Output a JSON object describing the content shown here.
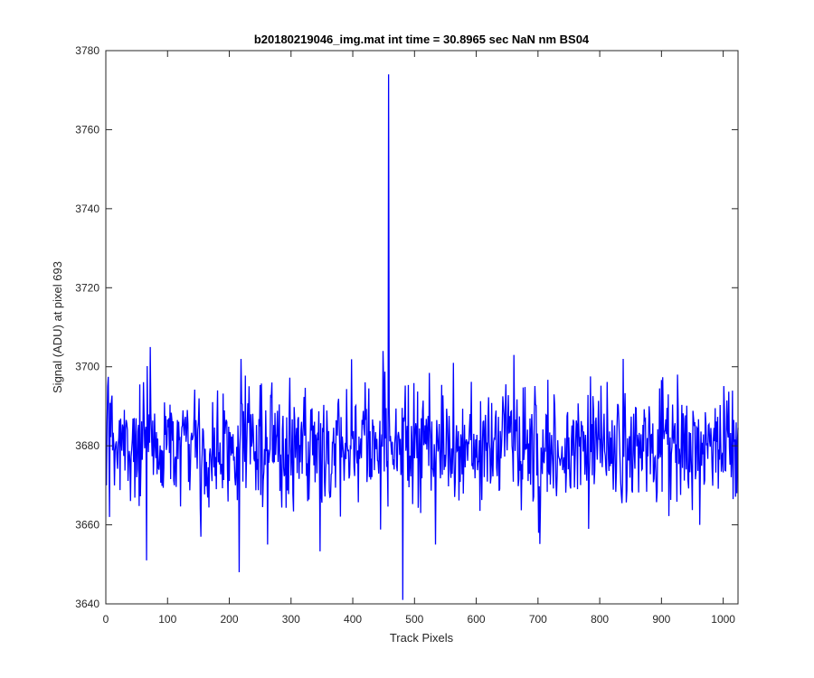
{
  "chart_data": {
    "type": "line",
    "title": "b20180219046_img.mat int time = 30.8965 sec  NaN nm BS04",
    "xlabel": "Track Pixels",
    "ylabel": "Signal (ADU) at pixel 693",
    "xlim": [
      0,
      1024
    ],
    "ylim": [
      3640,
      3780
    ],
    "xticks": [
      0,
      100,
      200,
      300,
      400,
      500,
      600,
      700,
      800,
      900,
      1000
    ],
    "yticks": [
      3640,
      3660,
      3680,
      3700,
      3720,
      3740,
      3760,
      3780
    ],
    "grid": false,
    "legend": "none",
    "line_color": "#0000ff",
    "series": [
      {
        "noise": {
          "count": 1024,
          "x_start": 1,
          "mean": 3680,
          "std": 7.5,
          "min": 3650,
          "max": 3705
        },
        "points": [
          {
            "x": 1,
            "y": 3670
          },
          {
            "x": 3,
            "y": 3695
          },
          {
            "x": 6,
            "y": 3662
          },
          {
            "x": 66,
            "y": 3651
          },
          {
            "x": 72,
            "y": 3705
          },
          {
            "x": 154,
            "y": 3657
          },
          {
            "x": 216,
            "y": 3648
          },
          {
            "x": 219,
            "y": 3702
          },
          {
            "x": 262,
            "y": 3655
          },
          {
            "x": 449,
            "y": 3704
          },
          {
            "x": 458,
            "y": 3774
          },
          {
            "x": 462,
            "y": 3680
          },
          {
            "x": 481,
            "y": 3641
          },
          {
            "x": 534,
            "y": 3655
          },
          {
            "x": 563,
            "y": 3701
          },
          {
            "x": 661,
            "y": 3703
          },
          {
            "x": 701,
            "y": 3658
          },
          {
            "x": 782,
            "y": 3659
          },
          {
            "x": 838,
            "y": 3702
          },
          {
            "x": 962,
            "y": 3660
          },
          {
            "x": 1022,
            "y": 3668
          }
        ]
      }
    ]
  }
}
